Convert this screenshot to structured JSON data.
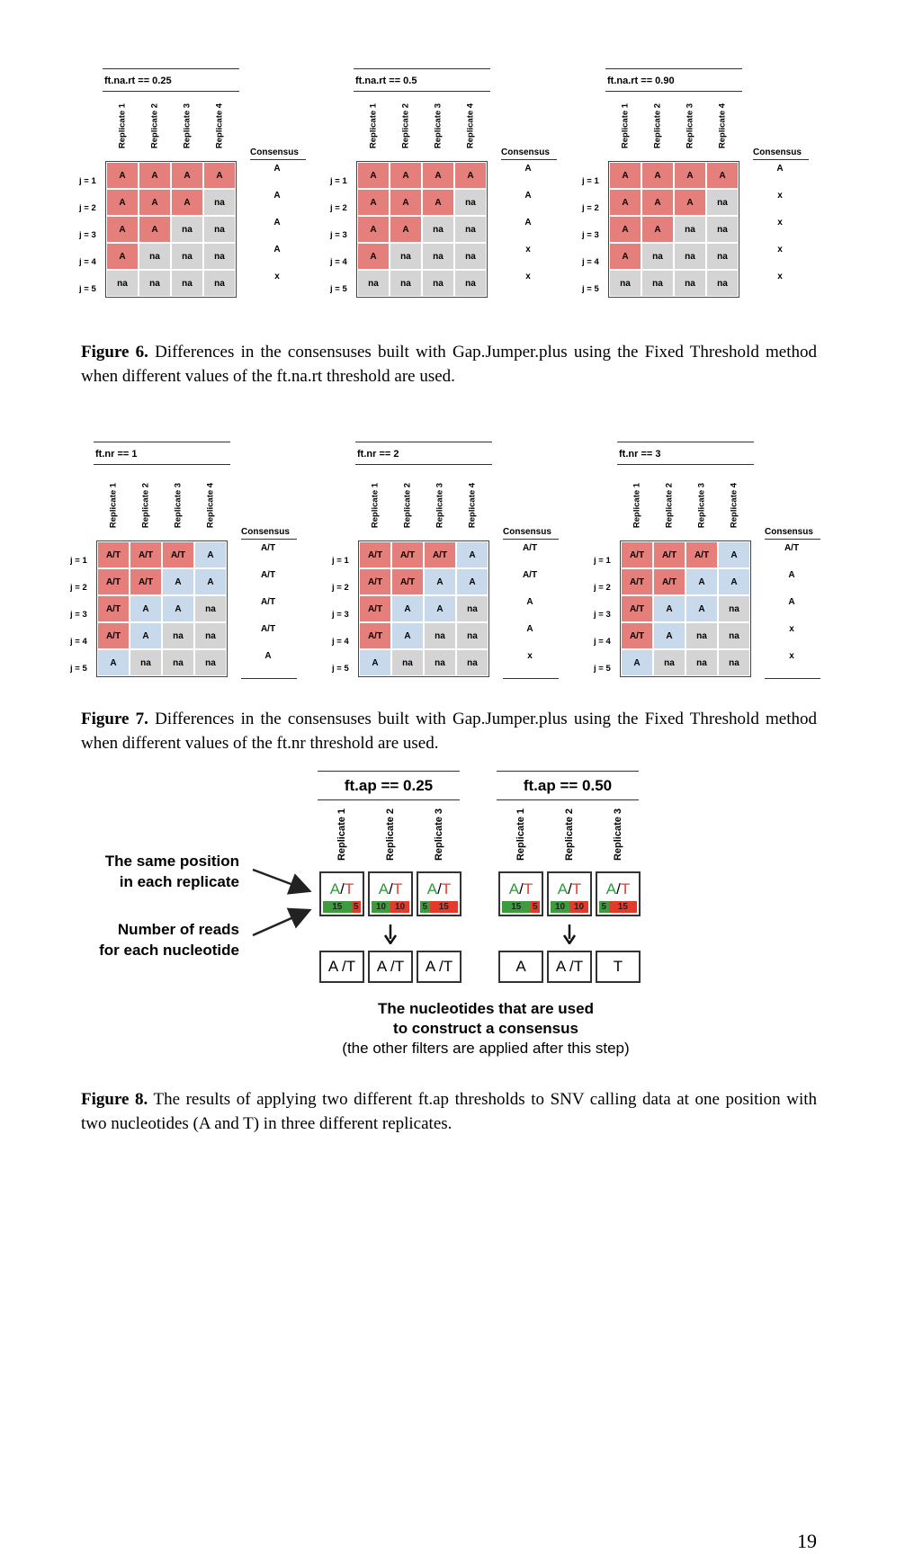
{
  "figure6": {
    "panels": [
      {
        "title": "ft.na.rt  == 0.25",
        "cells": [
          [
            "A",
            "A",
            "A",
            "A"
          ],
          [
            "A",
            "A",
            "A",
            "na"
          ],
          [
            "A",
            "A",
            "na",
            "na"
          ],
          [
            "A",
            "na",
            "na",
            "na"
          ],
          [
            "na",
            "na",
            "na",
            "na"
          ]
        ],
        "colors": [
          [
            "red",
            "red",
            "red",
            "red"
          ],
          [
            "red",
            "red",
            "red",
            "gray"
          ],
          [
            "red",
            "red",
            "gray",
            "gray"
          ],
          [
            "red",
            "gray",
            "gray",
            "gray"
          ],
          [
            "gray",
            "gray",
            "gray",
            "gray"
          ]
        ],
        "consensus": [
          "A",
          "A",
          "A",
          "A",
          "x"
        ]
      },
      {
        "title": "ft.na.rt  == 0.5",
        "cells": [
          [
            "A",
            "A",
            "A",
            "A"
          ],
          [
            "A",
            "A",
            "A",
            "na"
          ],
          [
            "A",
            "A",
            "na",
            "na"
          ],
          [
            "A",
            "na",
            "na",
            "na"
          ],
          [
            "na",
            "na",
            "na",
            "na"
          ]
        ],
        "colors": [
          [
            "red",
            "red",
            "red",
            "red"
          ],
          [
            "red",
            "red",
            "red",
            "gray"
          ],
          [
            "red",
            "red",
            "gray",
            "gray"
          ],
          [
            "red",
            "gray",
            "gray",
            "gray"
          ],
          [
            "gray",
            "gray",
            "gray",
            "gray"
          ]
        ],
        "consensus": [
          "A",
          "A",
          "A",
          "x",
          "x"
        ]
      },
      {
        "title": "ft.na.rt  == 0.90",
        "cells": [
          [
            "A",
            "A",
            "A",
            "A"
          ],
          [
            "A",
            "A",
            "A",
            "na"
          ],
          [
            "A",
            "A",
            "na",
            "na"
          ],
          [
            "A",
            "na",
            "na",
            "na"
          ],
          [
            "na",
            "na",
            "na",
            "na"
          ]
        ],
        "colors": [
          [
            "red",
            "red",
            "red",
            "red"
          ],
          [
            "red",
            "red",
            "red",
            "gray"
          ],
          [
            "red",
            "red",
            "gray",
            "gray"
          ],
          [
            "red",
            "gray",
            "gray",
            "gray"
          ],
          [
            "gray",
            "gray",
            "gray",
            "gray"
          ]
        ],
        "consensus": [
          "A",
          "x",
          "x",
          "x",
          "x"
        ]
      }
    ],
    "caption_label": "Figure 6.",
    "caption_text": " Differences in the consensuses built with Gap.Jumper.plus using the Fixed Threshold method when different values of the ft.na.rt threshold are used."
  },
  "figure7": {
    "panels": [
      {
        "title": "ft.nr == 1",
        "cells": [
          [
            "A/T",
            "A/T",
            "A/T",
            "A"
          ],
          [
            "A/T",
            "A/T",
            "A",
            "A"
          ],
          [
            "A/T",
            "A",
            "A",
            "na"
          ],
          [
            "A/T",
            "A",
            "na",
            "na"
          ],
          [
            "A",
            "na",
            "na",
            "na"
          ]
        ],
        "colors": [
          [
            "red",
            "red",
            "red",
            "blue"
          ],
          [
            "red",
            "red",
            "blue",
            "blue"
          ],
          [
            "red",
            "blue",
            "blue",
            "gray"
          ],
          [
            "red",
            "blue",
            "gray",
            "gray"
          ],
          [
            "blue",
            "gray",
            "gray",
            "gray"
          ]
        ],
        "consensus": [
          "A/T",
          "A/T",
          "A/T",
          "A/T",
          "A"
        ]
      },
      {
        "title": "ft.nr == 2",
        "cells": [
          [
            "A/T",
            "A/T",
            "A/T",
            "A"
          ],
          [
            "A/T",
            "A/T",
            "A",
            "A"
          ],
          [
            "A/T",
            "A",
            "A",
            "na"
          ],
          [
            "A/T",
            "A",
            "na",
            "na"
          ],
          [
            "A",
            "na",
            "na",
            "na"
          ]
        ],
        "colors": [
          [
            "red",
            "red",
            "red",
            "blue"
          ],
          [
            "red",
            "red",
            "blue",
            "blue"
          ],
          [
            "red",
            "blue",
            "blue",
            "gray"
          ],
          [
            "red",
            "blue",
            "gray",
            "gray"
          ],
          [
            "blue",
            "gray",
            "gray",
            "gray"
          ]
        ],
        "consensus": [
          "A/T",
          "A/T",
          "A",
          "A",
          "x"
        ]
      },
      {
        "title": "ft.nr == 3",
        "cells": [
          [
            "A/T",
            "A/T",
            "A/T",
            "A"
          ],
          [
            "A/T",
            "A/T",
            "A",
            "A"
          ],
          [
            "A/T",
            "A",
            "A",
            "na"
          ],
          [
            "A/T",
            "A",
            "na",
            "na"
          ],
          [
            "A",
            "na",
            "na",
            "na"
          ]
        ],
        "colors": [
          [
            "red",
            "red",
            "red",
            "blue"
          ],
          [
            "red",
            "red",
            "blue",
            "blue"
          ],
          [
            "red",
            "blue",
            "blue",
            "gray"
          ],
          [
            "red",
            "blue",
            "gray",
            "gray"
          ],
          [
            "blue",
            "gray",
            "gray",
            "gray"
          ]
        ],
        "consensus": [
          "A/T",
          "A",
          "A",
          "x",
          "x"
        ]
      }
    ],
    "caption_label": "Figure 7.",
    "caption_text": " Differences in the consensuses built with Gap.Jumper.plus using the Fixed Threshold method when different values of the ft.nr threshold are used."
  },
  "common": {
    "replicates": [
      "Replicate 1",
      "Replicate 2",
      "Replicate 3",
      "Replicate 4"
    ],
    "consensus_header": "Consensus",
    "row_labels": [
      "j = 1",
      "j = 2",
      "j = 3",
      "j = 4",
      "j = 5"
    ]
  },
  "figure8": {
    "panels": [
      {
        "title": "ft.ap == 0.25",
        "replicates": [
          "Replicate 1",
          "Replicate 2",
          "Replicate 3"
        ],
        "nucleotides": [
          {
            "a": "A",
            "sep": "/",
            "t": "T"
          },
          {
            "a": "A",
            "sep": "/",
            "t": "T"
          },
          {
            "a": "A",
            "sep": "/",
            "t": "T"
          }
        ],
        "counts": [
          [
            15,
            5
          ],
          [
            10,
            10
          ],
          [
            5,
            15
          ]
        ],
        "results": [
          "A /T",
          "A /T",
          "A /T"
        ]
      },
      {
        "title": "ft.ap == 0.50",
        "replicates": [
          "Replicate 1",
          "Replicate 2",
          "Replicate 3"
        ],
        "nucleotides": [
          {
            "a": "A",
            "sep": "/",
            "t": "T"
          },
          {
            "a": "A",
            "sep": "/",
            "t": "T"
          },
          {
            "a": "A",
            "sep": "/",
            "t": "T"
          }
        ],
        "counts": [
          [
            15,
            5
          ],
          [
            10,
            10
          ],
          [
            5,
            15
          ]
        ],
        "results": [
          "A",
          "A /T",
          "T"
        ]
      }
    ],
    "label_position_line1": "The same position",
    "label_position_line2": "in each replicate",
    "label_reads_line1": "Number of reads",
    "label_reads_line2": "for each nucleotide",
    "note_line1": "The nucleotides that are used",
    "note_line2": "to construct a consensus",
    "note_line3": "(the other filters are applied after this step)",
    "caption_label": "Figure 8.",
    "caption_text": " The results of applying two different ft.ap thresholds to SNV calling data at one position with two nucleotides (A and T) in three different replicates."
  },
  "page_number": "19",
  "colors": {
    "red": "#e57f7c",
    "blue": "#c9d9ec",
    "gray": "#d4d4d4",
    "green_count": "#3e9c3e",
    "red_count": "#e33a2c"
  }
}
